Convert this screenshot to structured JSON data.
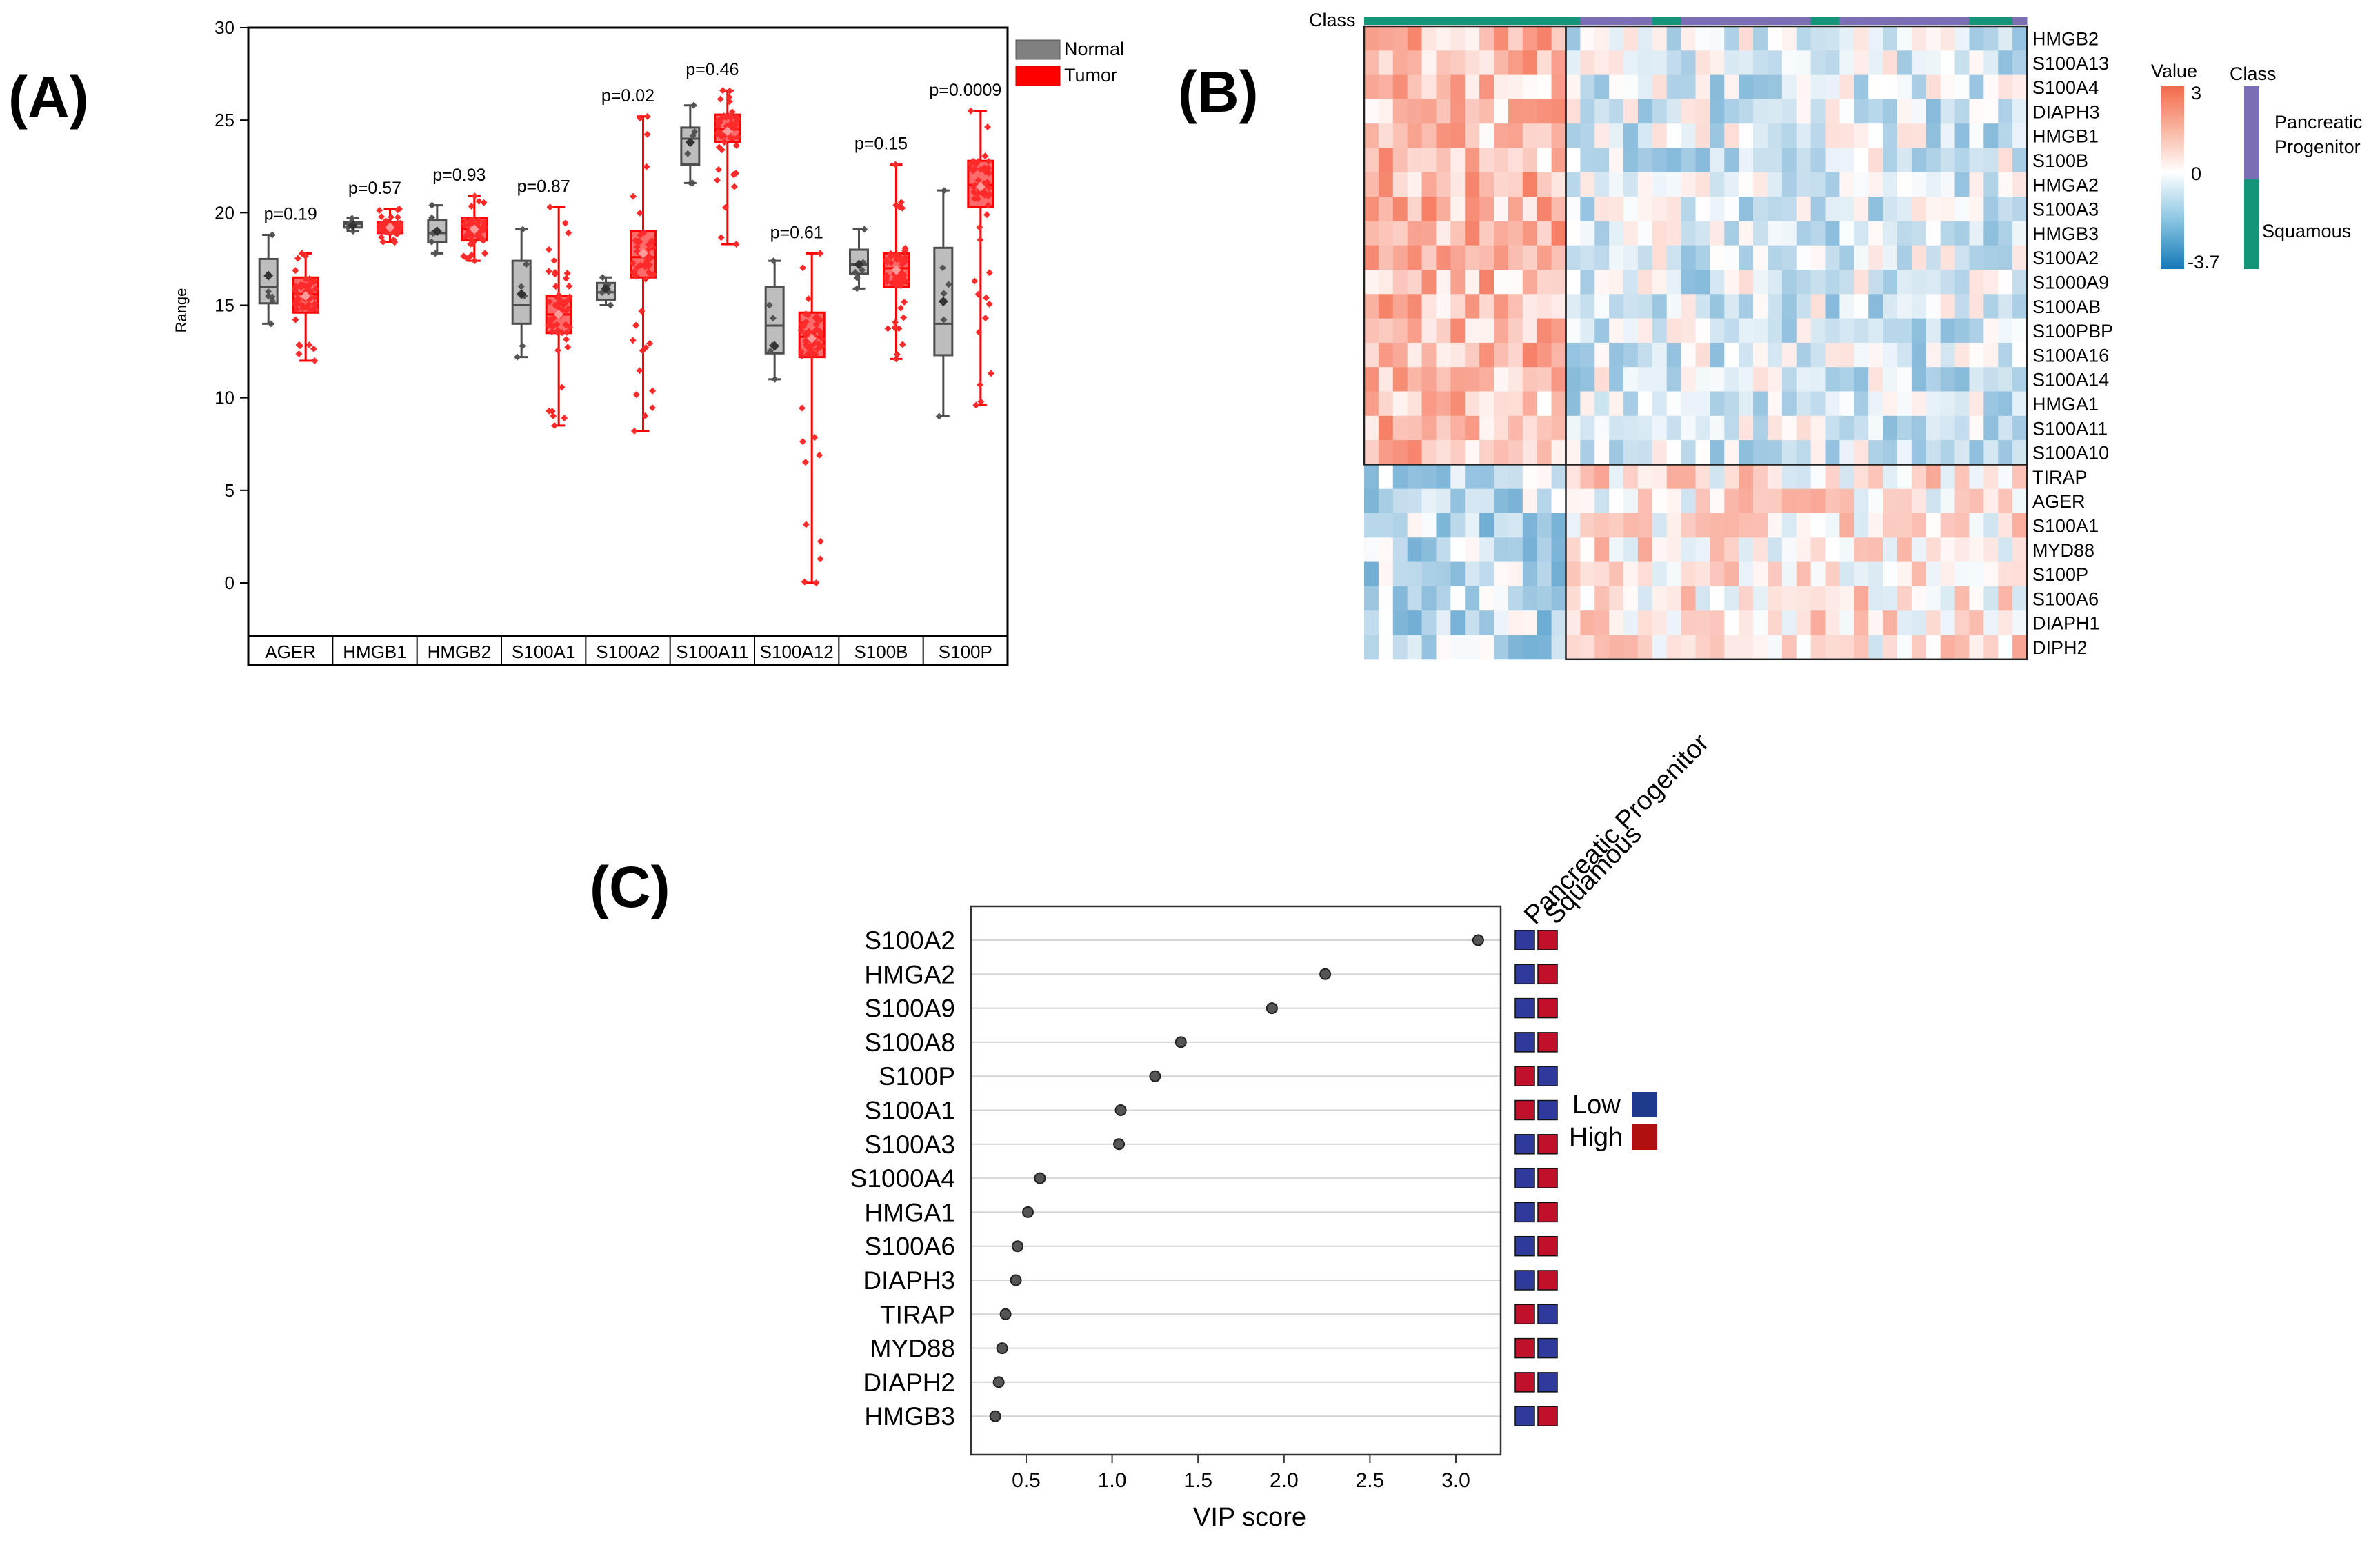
{
  "panels": {
    "a": "(A)",
    "b": "(B)",
    "c": "(C)"
  },
  "chart_data": [
    {
      "type": "box",
      "panel": "(A)",
      "title": "",
      "ylabel": "Range",
      "ylim": [
        -2,
        30
      ],
      "yticks": [
        0,
        5,
        10,
        15,
        20,
        25,
        30
      ],
      "legend": {
        "position": "top-right",
        "entries": [
          {
            "name": "Normal",
            "color": "#808080"
          },
          {
            "name": "Tumor",
            "color": "#ff0000"
          }
        ]
      },
      "categories": [
        "AGER",
        "HMGB1",
        "HMGB2",
        "S100A1",
        "S100A2",
        "S100A11",
        "S100A12",
        "S100B",
        "S100P"
      ],
      "pvalues": [
        "p=0.19",
        "p=0.57",
        "p=0.93",
        "p=0.87",
        "p=0.02",
        "p=0.46",
        "p=0.61",
        "p=0.15",
        "p=0.0009"
      ],
      "normal": [
        {
          "min": 14.0,
          "q1": 15.1,
          "median": 16.0,
          "q3": 17.5,
          "max": 18.8,
          "mean": 16.6
        },
        {
          "min": 19.0,
          "q1": 19.2,
          "median": 19.4,
          "q3": 19.5,
          "max": 19.7,
          "mean": 19.3
        },
        {
          "min": 17.8,
          "q1": 18.4,
          "median": 18.9,
          "q3": 19.6,
          "max": 20.4,
          "mean": 19.0
        },
        {
          "min": 12.2,
          "q1": 14.0,
          "median": 15.0,
          "q3": 17.4,
          "max": 19.1,
          "mean": 15.6
        },
        {
          "min": 15.0,
          "q1": 15.3,
          "median": 15.7,
          "q3": 16.2,
          "max": 16.5,
          "mean": 15.9
        },
        {
          "min": 21.6,
          "q1": 22.6,
          "median": 24.0,
          "q3": 24.6,
          "max": 25.8,
          "mean": 23.8
        },
        {
          "min": 11.0,
          "q1": 12.4,
          "median": 13.9,
          "q3": 16.0,
          "max": 17.4,
          "mean": 12.8
        },
        {
          "min": 15.9,
          "q1": 16.7,
          "median": 17.2,
          "q3": 18.0,
          "max": 19.1,
          "mean": 17.2
        },
        {
          "min": 9.0,
          "q1": 12.3,
          "median": 14.0,
          "q3": 18.1,
          "max": 21.2,
          "mean": 15.2
        }
      ],
      "tumor": [
        {
          "min": 12.0,
          "q1": 14.6,
          "median": 15.6,
          "q3": 16.5,
          "max": 17.8,
          "mean": 15.5
        },
        {
          "min": 18.4,
          "q1": 18.9,
          "median": 19.2,
          "q3": 19.5,
          "max": 20.2,
          "mean": 19.2
        },
        {
          "min": 17.4,
          "q1": 18.5,
          "median": 19.1,
          "q3": 19.7,
          "max": 20.9,
          "mean": 19.1
        },
        {
          "min": 8.5,
          "q1": 13.5,
          "median": 14.5,
          "q3": 15.5,
          "max": 20.3,
          "mean": 14.5
        },
        {
          "min": 8.2,
          "q1": 16.5,
          "median": 17.6,
          "q3": 19.0,
          "max": 25.2,
          "mean": 17.8
        },
        {
          "min": 18.3,
          "q1": 23.8,
          "median": 24.5,
          "q3": 25.3,
          "max": 26.6,
          "mean": 24.4
        },
        {
          "min": 0.0,
          "q1": 12.2,
          "median": 13.3,
          "q3": 14.6,
          "max": 17.8,
          "mean": 13.2
        },
        {
          "min": 12.1,
          "q1": 16.0,
          "median": 17.0,
          "q3": 17.8,
          "max": 22.6,
          "mean": 16.9
        },
        {
          "min": 9.6,
          "q1": 20.3,
          "median": 21.5,
          "q3": 22.8,
          "max": 25.5,
          "mean": 21.4
        }
      ]
    },
    {
      "type": "heatmap",
      "panel": "(B)",
      "class_label": "Class",
      "legend_value_title": "Value",
      "legend_value_ticks": [
        "3",
        "0",
        "-3.7"
      ],
      "value_range": [
        -3.7,
        3
      ],
      "legend_class_title": "Class",
      "classes": [
        {
          "name": "Pancreatic Progenitor",
          "color": "#7b6eb5"
        },
        {
          "name": "Squamous",
          "color": "#149579"
        }
      ],
      "rows": [
        "HMGB2",
        "S100A13",
        "S100A4",
        "DIAPH3",
        "HMGB1",
        "S100B",
        "HMGA2",
        "S100A3",
        "HMGB3",
        "S100A2",
        "S1000A9",
        "S100AB",
        "S100PBP",
        "S100A16",
        "S100A14",
        "HMGA1",
        "S100A11",
        "S100A10",
        "TIRAP",
        "AGER",
        "S100A1",
        "MYD88",
        "S100P",
        "S100A6",
        "DIAPH1",
        "DIPH2"
      ],
      "row_cluster_sizes": [
        18,
        8
      ],
      "column_count": 46,
      "column_cluster_sizes": [
        14,
        32
      ],
      "cluster_mean_values": {
        "upper_left": 1.3,
        "upper_right": -0.6,
        "lower_left": -1.0,
        "lower_right": 0.5
      }
    },
    {
      "type": "dot",
      "panel": "(C)",
      "xlabel": "VIP score",
      "xticks": [
        0.5,
        1.0,
        1.5,
        2.0,
        2.5,
        3.0
      ],
      "xlim": [
        0.1,
        3.3
      ],
      "categories": [
        "S100A2",
        "HMGA2",
        "S100A9",
        "S100A8",
        "S100P",
        "S100A1",
        "S100A3",
        "S1000A4",
        "HMGA1",
        "S100A6",
        "DIAPH3",
        "TIRAP",
        "MYD88",
        "DIAPH2",
        "HMGB3"
      ],
      "values": [
        3.13,
        2.24,
        1.93,
        1.4,
        1.25,
        1.05,
        1.04,
        0.58,
        0.51,
        0.45,
        0.44,
        0.38,
        0.36,
        0.34,
        0.32
      ],
      "heat_columns": [
        "Pancreatic Progenitor",
        "Squamous"
      ],
      "heat_levels": [
        [
          "Low",
          "High"
        ],
        [
          "Low",
          "High"
        ],
        [
          "Low",
          "High"
        ],
        [
          "Low",
          "High"
        ],
        [
          "High",
          "Low"
        ],
        [
          "High",
          "Low"
        ],
        [
          "Low",
          "High"
        ],
        [
          "Low",
          "High"
        ],
        [
          "Low",
          "High"
        ],
        [
          "Low",
          "High"
        ],
        [
          "Low",
          "High"
        ],
        [
          "High",
          "Low"
        ],
        [
          "High",
          "Low"
        ],
        [
          "High",
          "Low"
        ],
        [
          "Low",
          "High"
        ]
      ],
      "legend": [
        {
          "name": "Low",
          "color": "#1f3a8c"
        },
        {
          "name": "High",
          "color": "#b01010"
        }
      ]
    }
  ]
}
